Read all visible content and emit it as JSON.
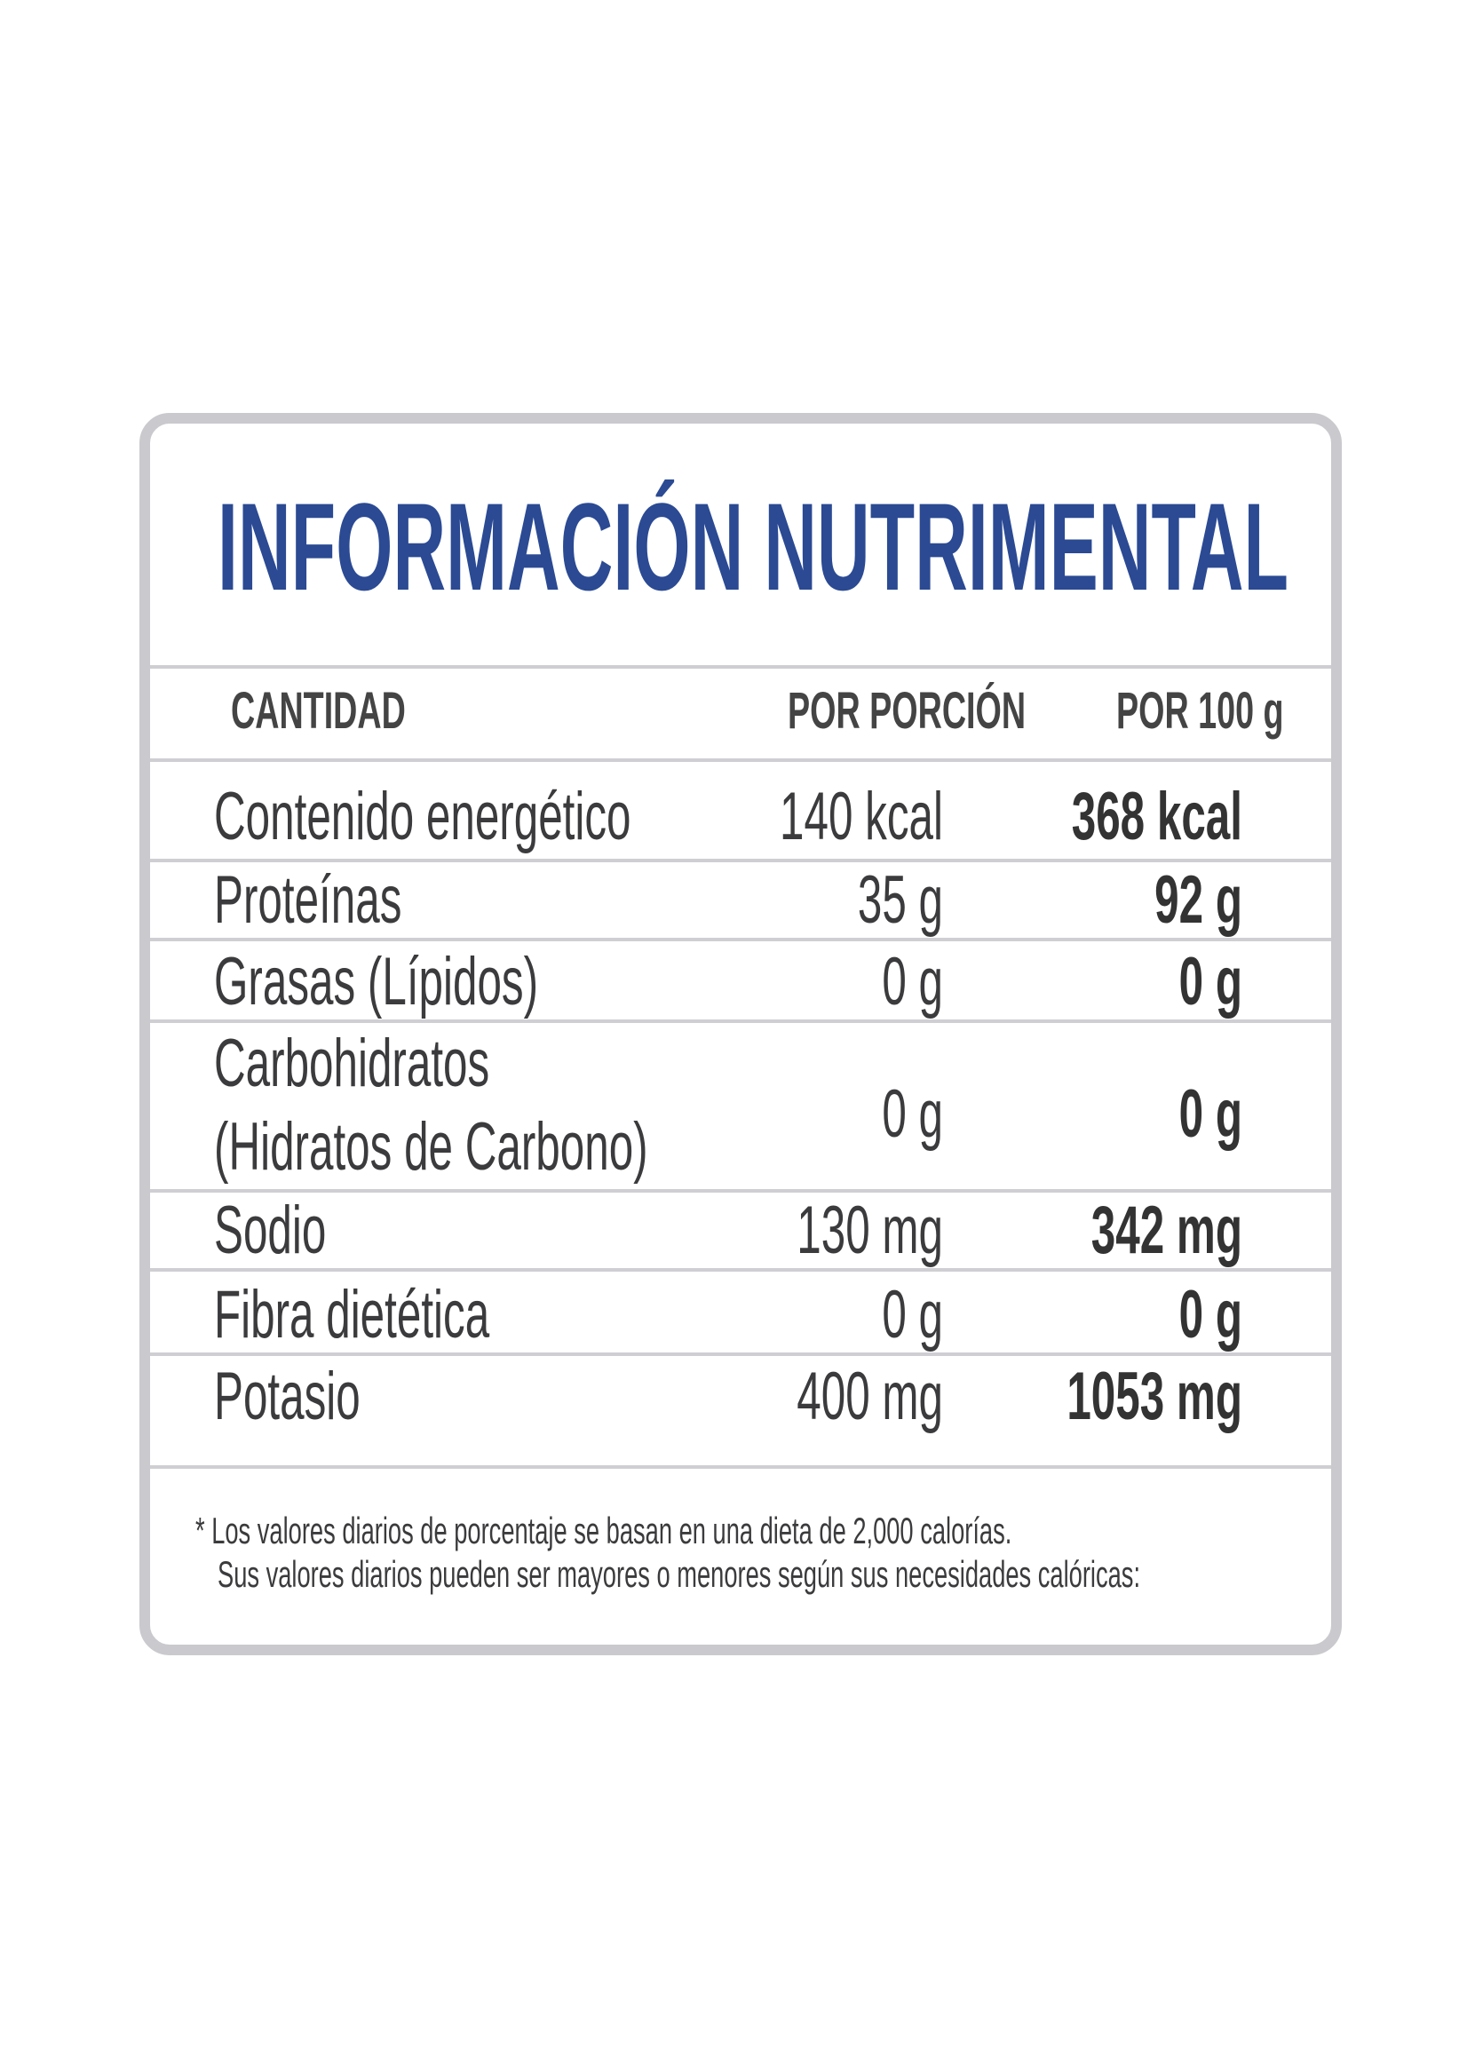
{
  "title": "INFORMACIÓN NUTRIMENTAL",
  "table": {
    "headers": [
      "CANTIDAD",
      "POR PORCIÓN",
      "POR 100 g"
    ],
    "rows": [
      {
        "label": [
          "Contenido energético"
        ],
        "per_portion": "140 kcal",
        "per_100g": "368 kcal"
      },
      {
        "label": [
          "Proteínas"
        ],
        "per_portion": "35 g",
        "per_100g": "92 g"
      },
      {
        "label": [
          "Grasas (Lípidos)"
        ],
        "per_portion": "0 g",
        "per_100g": "0 g"
      },
      {
        "label": [
          "Carbohidratos",
          "(Hidratos de Carbono)"
        ],
        "per_portion": "0 g",
        "per_100g": "0 g"
      },
      {
        "label": [
          "Sodio"
        ],
        "per_portion": "130 mg",
        "per_100g": "342 mg"
      },
      {
        "label": [
          "Fibra dietética"
        ],
        "per_portion": "0 g",
        "per_100g": "0 g"
      },
      {
        "label": [
          "Potasio"
        ],
        "per_portion": "400 mg",
        "per_100g": "1053 mg"
      }
    ]
  },
  "footnote": [
    "* Los valores diarios de porcentaje se basan en una dieta de 2,000 calorías.",
    "Sus valores diarios pueden ser mayores o menores según sus necesidades calóricas:"
  ]
}
